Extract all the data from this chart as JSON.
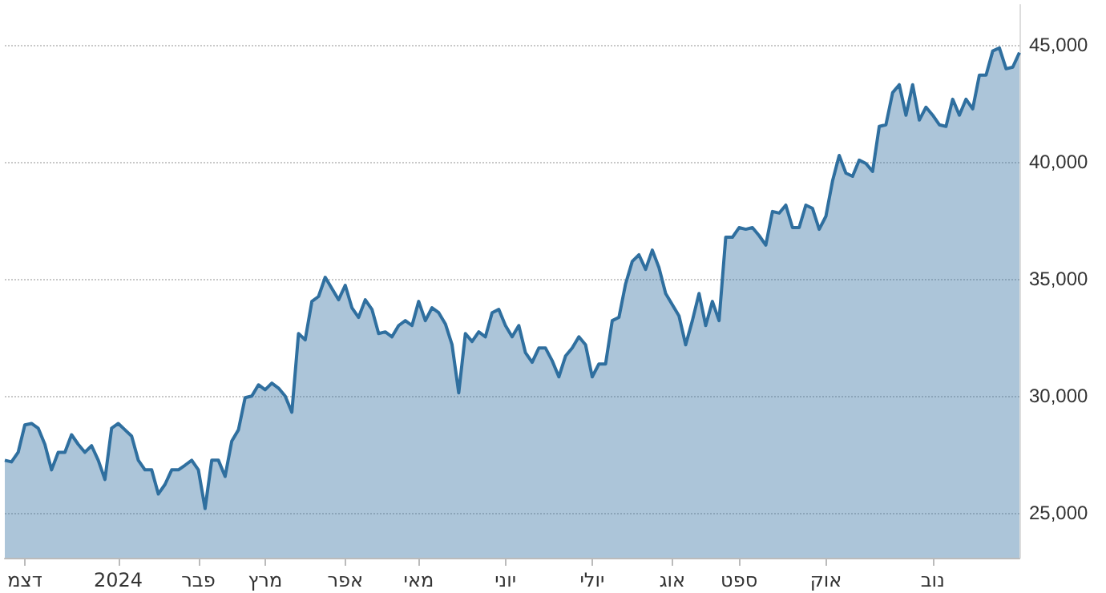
{
  "chart_data": {
    "type": "area",
    "categories": [
      null,
      null,
      null,
      "דצמ",
      null,
      null,
      null,
      null,
      null,
      null,
      null,
      null,
      null,
      null,
      null,
      null,
      null,
      "2024",
      null,
      null,
      null,
      null,
      null,
      null,
      null,
      null,
      null,
      null,
      null,
      "פבר",
      null,
      null,
      null,
      null,
      null,
      null,
      null,
      null,
      null,
      "מרץ",
      null,
      null,
      null,
      null,
      null,
      null,
      null,
      null,
      null,
      null,
      null,
      "אפר",
      null,
      null,
      null,
      null,
      null,
      null,
      null,
      null,
      null,
      null,
      "מאי",
      null,
      null,
      null,
      null,
      null,
      null,
      null,
      null,
      null,
      null,
      null,
      null,
      "יוני",
      null,
      null,
      null,
      null,
      null,
      null,
      null,
      null,
      null,
      null,
      null,
      null,
      "יולי",
      null,
      null,
      null,
      null,
      null,
      null,
      null,
      null,
      null,
      null,
      null,
      "אוג",
      null,
      null,
      null,
      null,
      null,
      null,
      null,
      null,
      null,
      "ספט",
      null,
      null,
      null,
      null,
      null,
      null,
      null,
      null,
      null,
      null,
      null,
      null,
      "אוק",
      null,
      null,
      null,
      null,
      null,
      null,
      null,
      null,
      null,
      null,
      null,
      null,
      null,
      null,
      null,
      "נוב",
      null,
      null,
      null,
      null,
      null,
      null,
      null,
      null,
      null,
      null,
      null,
      null,
      null
    ],
    "series": [
      {
        "color": "#2f6f9f",
        "values": [
          27260,
          27190,
          27600,
          28770,
          28830,
          28630,
          27940,
          26850,
          27600,
          27600,
          28350,
          27940,
          27600,
          27880,
          27260,
          26440,
          28630,
          28830,
          28560,
          28290,
          27260,
          26850,
          26850,
          25820,
          26230,
          26850,
          26850,
          27050,
          27260,
          26850,
          25200,
          27260,
          27260,
          26570,
          28080,
          28560,
          29930,
          30000,
          30480,
          30270,
          30550,
          30340,
          30000,
          29310,
          32670,
          32400,
          34040,
          34250,
          35070,
          34590,
          34110,
          34730,
          33770,
          33360,
          34110,
          33700,
          32670,
          32740,
          32530,
          33010,
          33220,
          33010,
          34040,
          33220,
          33770,
          33560,
          33080,
          32190,
          30140,
          32670,
          32330,
          32740,
          32530,
          33560,
          33700,
          33010,
          32530,
          33010,
          31850,
          31440,
          32050,
          32050,
          31510,
          30820,
          31710,
          32050,
          32530,
          32190,
          30820,
          31370,
          31370,
          33220,
          33360,
          34790,
          35750,
          36030,
          35410,
          36230,
          35480,
          34380,
          33900,
          33420,
          32190,
          33220,
          34380,
          33010,
          34040,
          33220,
          36780,
          36780,
          37190,
          37120,
          37190,
          36850,
          36440,
          37880,
          37810,
          38150,
          37190,
          37190,
          38150,
          38010,
          37120,
          37670,
          39180,
          40270,
          39520,
          39380,
          40070,
          39930,
          39590,
          41510,
          41580,
          42950,
          43290,
          41990,
          43290,
          41780,
          42330,
          41990,
          41580,
          41510,
          42670,
          41990,
          42670,
          42260,
          43700,
          43700,
          44730,
          44860,
          43970,
          44040,
          44660
        ]
      }
    ],
    "ylim": [
      23100,
      46700
    ],
    "yticks": [
      {
        "value": 25000,
        "label": "25,000"
      },
      {
        "value": 30000,
        "label": "30,000"
      },
      {
        "value": 35000,
        "label": "35,000"
      },
      {
        "value": 40000,
        "label": "40,000"
      },
      {
        "value": 45000,
        "label": "45,000"
      }
    ],
    "grid": "y",
    "marker": "none",
    "line_style": "solid"
  }
}
